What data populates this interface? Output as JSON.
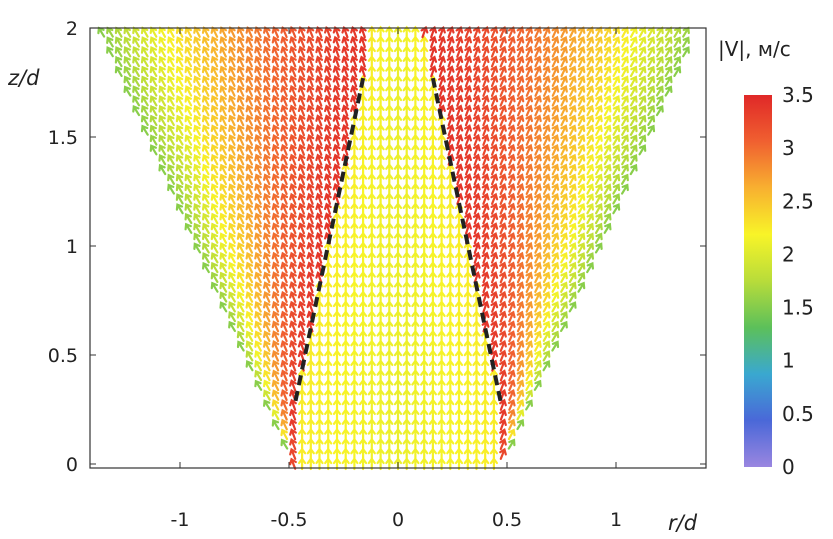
{
  "chart_data": {
    "type": "vector-field",
    "xlabel": "r/d",
    "ylabel": "z/d",
    "xlim": [
      -1.4,
      1.4
    ],
    "ylim": [
      -0.05,
      2.0
    ],
    "x_ticks": [
      {
        "value": -1,
        "label": "-1"
      },
      {
        "value": -0.5,
        "label": "-0.5"
      },
      {
        "value": 0,
        "label": "0"
      },
      {
        "value": 0.5,
        "label": "0.5"
      },
      {
        "value": 1,
        "label": "1"
      }
    ],
    "y_ticks": [
      {
        "value": 0,
        "label": "0"
      },
      {
        "value": 0.5,
        "label": "0.5"
      },
      {
        "value": 1,
        "label": "1"
      },
      {
        "value": 1.5,
        "label": "1.5"
      },
      {
        "value": 2,
        "label": "2"
      }
    ],
    "colorbar": {
      "title": "|V|, м/с",
      "min": 0,
      "max": 3.5,
      "ticks": [
        {
          "value": 3.5,
          "label": "3.5"
        },
        {
          "value": 3,
          "label": "3"
        },
        {
          "value": 2.5,
          "label": "2.5"
        },
        {
          "value": 2,
          "label": "2"
        },
        {
          "value": 1.5,
          "label": "1.5"
        },
        {
          "value": 1,
          "label": "1"
        },
        {
          "value": 0.5,
          "label": "0.5"
        },
        {
          "value": 0,
          "label": "0"
        }
      ],
      "colors": [
        "#9a86e0",
        "#4a68d8",
        "#3aa8d0",
        "#5cc05a",
        "#b8dc3a",
        "#f8f428",
        "#f8b030",
        "#f06030",
        "#e02828"
      ]
    },
    "field_description": {
      "core_speed": 2.1,
      "shear_speed": 3.4,
      "outer_speed": 1.6,
      "core_direction": "up",
      "spread_half_width_at_z0": 0.48,
      "spread_half_width_at_z2": 1.38
    },
    "dashed_lines": [
      {
        "points": [
          [
            -0.47,
            0.29
          ],
          [
            -0.16,
            1.77
          ]
        ]
      },
      {
        "points": [
          [
            0.47,
            0.29
          ],
          [
            0.16,
            1.77
          ]
        ]
      }
    ]
  }
}
